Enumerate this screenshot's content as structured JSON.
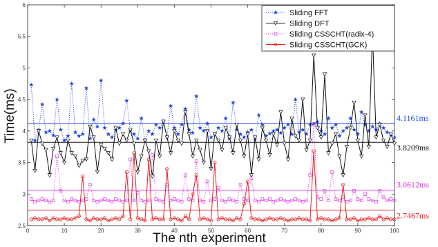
{
  "chart_data": {
    "type": "line",
    "title": "",
    "xlabel": "The nth experiment",
    "ylabel": "Time(ms)",
    "xlim": [
      0,
      100
    ],
    "ylim": [
      2.5,
      6
    ],
    "xticks": [
      "0",
      "10",
      "20",
      "30",
      "40",
      "50",
      "60",
      "70",
      "80",
      "90",
      "100"
    ],
    "yticks": [
      "2.5",
      "3",
      "3.5",
      "4",
      "4.5",
      "5",
      "5.5",
      "6"
    ],
    "grid": false,
    "legend_position": "top-right",
    "x": [
      1,
      2,
      3,
      4,
      5,
      6,
      7,
      8,
      9,
      10,
      11,
      12,
      13,
      14,
      15,
      16,
      17,
      18,
      19,
      20,
      21,
      22,
      23,
      24,
      25,
      26,
      27,
      28,
      29,
      30,
      31,
      32,
      33,
      34,
      35,
      36,
      37,
      38,
      39,
      40,
      41,
      42,
      43,
      44,
      45,
      46,
      47,
      48,
      49,
      50,
      51,
      52,
      53,
      54,
      55,
      56,
      57,
      58,
      59,
      60,
      61,
      62,
      63,
      64,
      65,
      66,
      67,
      68,
      69,
      70,
      71,
      72,
      73,
      74,
      75,
      76,
      77,
      78,
      79,
      80,
      81,
      82,
      83,
      84,
      85,
      86,
      87,
      88,
      89,
      90,
      91,
      92,
      93,
      94,
      95,
      96,
      97,
      98,
      99,
      100
    ],
    "series": [
      {
        "name": "Sliding FFT",
        "color": "#2346e6",
        "style": "dotted",
        "marker": "star",
        "average": 4.1161,
        "average_label": "4.1161ms",
        "values": [
          4.73,
          3.85,
          4.02,
          4.42,
          3.98,
          4.0,
          3.93,
          4.5,
          4.02,
          3.85,
          3.92,
          4.75,
          3.98,
          3.92,
          3.95,
          4.68,
          3.88,
          4.18,
          4.07,
          4.8,
          4.05,
          3.95,
          3.9,
          4.02,
          4.05,
          4.12,
          4.48,
          4.0,
          3.95,
          3.88,
          4.2,
          3.85,
          4.0,
          3.95,
          4.1,
          4.05,
          4.15,
          3.9,
          4.4,
          4.05,
          3.95,
          4.1,
          4.35,
          4.02,
          3.97,
          4.55,
          4.05,
          4.0,
          4.12,
          3.9,
          3.95,
          4.05,
          4.0,
          4.2,
          3.88,
          4.45,
          4.02,
          3.95,
          3.9,
          3.98,
          4.02,
          3.87,
          4.25,
          4.1,
          3.92,
          3.96,
          4.0,
          4.02,
          3.97,
          4.05,
          4.1,
          3.95,
          4.5,
          3.98,
          4.02,
          3.95,
          4.1,
          4.12,
          4.15,
          4.0,
          3.95,
          4.2,
          4.05,
          4.1,
          3.92,
          4.0,
          4.05,
          4.2,
          4.02,
          3.95,
          4.3,
          4.1,
          4.0,
          4.07,
          4.02,
          4.12,
          4.05,
          3.98,
          3.95,
          3.9
        ]
      },
      {
        "name": "Sliding DFT",
        "color": "#111111",
        "style": "solid",
        "marker": "triangle-down",
        "average": 3.8209,
        "average_label": "3.8209ms",
        "values": [
          3.85,
          3.37,
          4.0,
          3.8,
          3.7,
          3.3,
          3.72,
          3.9,
          3.65,
          3.5,
          3.85,
          3.65,
          3.6,
          3.45,
          3.53,
          3.55,
          4.07,
          3.9,
          3.35,
          3.78,
          3.72,
          3.65,
          3.55,
          4.05,
          3.8,
          3.95,
          3.85,
          4.02,
          3.8,
          3.35,
          3.6,
          3.85,
          3.68,
          3.28,
          3.85,
          3.6,
          4.15,
          3.9,
          3.65,
          4.0,
          3.85,
          3.8,
          4.3,
          3.95,
          3.6,
          3.85,
          3.7,
          3.5,
          4.0,
          3.4,
          3.95,
          3.85,
          3.7,
          4.05,
          3.9,
          3.65,
          4.1,
          3.85,
          3.6,
          3.95,
          3.3,
          3.9,
          3.55,
          4.05,
          3.85,
          3.62,
          3.95,
          3.78,
          4.3,
          3.8,
          3.55,
          4.2,
          3.92,
          3.85,
          4.5,
          3.7,
          3.85,
          5.2,
          4.05,
          3.9,
          4.9,
          3.65,
          3.8,
          3.95,
          3.6,
          3.3,
          3.75,
          4.05,
          4.45,
          3.85,
          3.6,
          4.25,
          3.75,
          5.55,
          3.9,
          4.1,
          3.85,
          3.75,
          3.95,
          3.8
        ]
      },
      {
        "name": "Sliding CSSCHT(radix-4)",
        "color": "#e03be0",
        "style": "dotted",
        "marker": "square",
        "average": 3.0612,
        "average_label": "3.0612ms",
        "values": [
          2.92,
          2.88,
          2.9,
          2.92,
          2.9,
          2.87,
          2.9,
          3.6,
          3.05,
          2.9,
          2.88,
          2.92,
          2.9,
          2.88,
          2.9,
          2.92,
          3.15,
          2.9,
          2.88,
          2.9,
          2.92,
          2.9,
          2.88,
          2.92,
          2.9,
          2.88,
          2.9,
          3.55,
          2.9,
          3.02,
          2.9,
          2.88,
          2.9,
          3.62,
          2.92,
          2.9,
          2.88,
          3.15,
          2.9,
          2.92,
          2.9,
          2.88,
          3.3,
          2.92,
          2.9,
          3.52,
          2.9,
          2.88,
          3.2,
          2.9,
          2.92,
          3.1,
          2.9,
          2.88,
          2.92,
          2.9,
          2.88,
          3.15,
          2.92,
          2.9,
          3.25,
          2.9,
          2.88,
          2.92,
          2.9,
          2.92,
          2.88,
          2.9,
          2.92,
          2.9,
          2.88,
          2.9,
          2.92,
          2.9,
          2.88,
          2.9,
          3.3,
          4.1,
          2.95,
          2.92,
          3.05,
          2.9,
          3.35,
          2.92,
          2.9,
          2.95,
          2.88,
          2.9,
          3.05,
          2.92,
          2.9,
          3.0,
          2.92,
          2.9,
          2.88,
          3.05,
          2.95,
          2.9,
          2.92,
          2.9
        ]
      },
      {
        "name": "Sliding CSSCHT(GCK)",
        "color": "#e82020",
        "style": "solid",
        "marker": "circle",
        "average": 2.7467,
        "average_label": "2.7467ms",
        "values": [
          2.6,
          2.62,
          2.6,
          2.6,
          2.62,
          2.58,
          2.62,
          2.6,
          2.6,
          2.62,
          2.6,
          2.6,
          2.62,
          2.65,
          3.28,
          2.6,
          2.58,
          2.62,
          2.6,
          2.6,
          2.62,
          2.58,
          2.6,
          2.62,
          2.6,
          2.65,
          3.35,
          2.6,
          3.65,
          2.62,
          2.6,
          2.58,
          3.55,
          2.6,
          2.62,
          2.6,
          2.6,
          3.4,
          2.6,
          2.62,
          2.6,
          2.58,
          2.65,
          2.6,
          3.0,
          3.3,
          2.6,
          2.62,
          2.6,
          2.58,
          3.5,
          2.6,
          2.62,
          2.6,
          2.6,
          2.58,
          2.62,
          2.6,
          2.85,
          3.2,
          2.62,
          2.6,
          2.6,
          2.58,
          2.6,
          2.62,
          2.6,
          2.6,
          2.62,
          2.6,
          2.58,
          2.6,
          2.6,
          2.62,
          2.6,
          2.6,
          2.58,
          3.68,
          2.6,
          2.62,
          2.6,
          2.6,
          2.58,
          2.6,
          2.62,
          3.15,
          2.6,
          2.6,
          2.62,
          2.58,
          2.6,
          2.6,
          2.62,
          2.6,
          2.6,
          2.65,
          2.6,
          2.62,
          2.6,
          2.6
        ]
      }
    ]
  }
}
